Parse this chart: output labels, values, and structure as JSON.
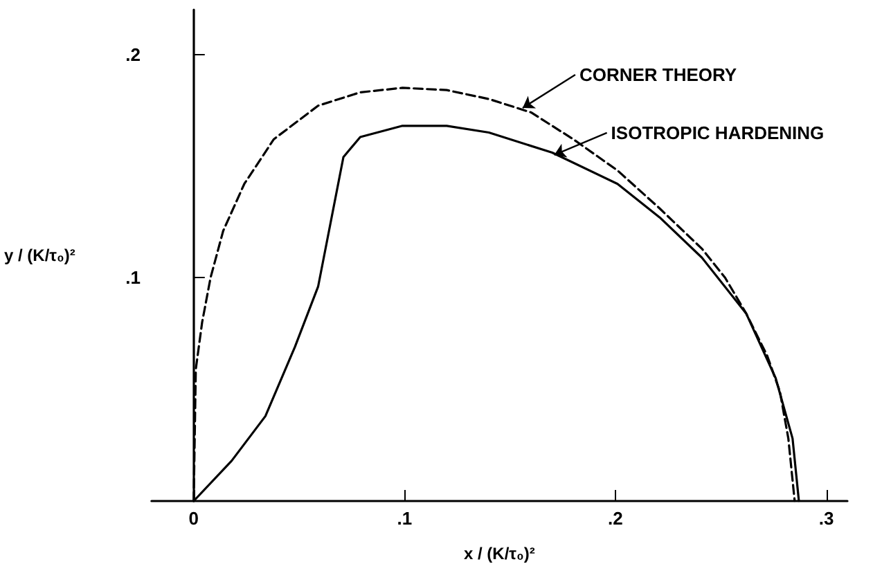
{
  "chart_data": {
    "type": "line",
    "xlabel": "x / (K/τ₀)²",
    "ylabel": "y / (K/τ₀)²",
    "xlim": [
      -0.02,
      0.31
    ],
    "ylim": [
      0,
      0.22
    ],
    "xticks": [
      0,
      {
        "value": 0.1,
        "label": ".1"
      },
      {
        "value": 0.2,
        "label": ".2"
      },
      {
        "value": 0.3,
        "label": ".3"
      }
    ],
    "yticks": [
      {
        "value": 0.1,
        "label": ".1"
      },
      {
        "value": 0.2,
        "label": ".2"
      }
    ],
    "marker": "none",
    "series": [
      {
        "color": "#000000",
        "line_style": "dashed",
        "x": [
          0,
          0.001,
          0.004,
          0.008,
          0.014,
          0.024,
          0.038,
          0.059,
          0.079,
          0.099,
          0.12,
          0.14,
          0.16,
          0.18,
          0.201,
          0.221,
          0.241,
          0.252,
          0.262,
          0.272,
          0.278,
          0.282,
          0.285
        ],
        "values": [
          0,
          0.059,
          0.08,
          0.1,
          0.121,
          0.142,
          0.162,
          0.177,
          0.183,
          0.185,
          0.184,
          0.18,
          0.174,
          0.162,
          0.148,
          0.131,
          0.113,
          0.1,
          0.084,
          0.065,
          0.049,
          0.028,
          0
        ]
      },
      {
        "color": "#000000",
        "line_style": "solid",
        "x": [
          0,
          0.018,
          0.034,
          0.048,
          0.059,
          0.071,
          0.079,
          0.099,
          0.12,
          0.14,
          0.17,
          0.201,
          0.221,
          0.241,
          0.262,
          0.276,
          0.284,
          0.287
        ],
        "values": [
          0,
          0.018,
          0.038,
          0.069,
          0.096,
          0.154,
          0.163,
          0.168,
          0.168,
          0.165,
          0.156,
          0.142,
          0.127,
          0.109,
          0.084,
          0.055,
          0.028,
          0
        ]
      }
    ],
    "annotations": [
      {
        "text": "CORNER THEORY",
        "x": 0.156,
        "y": 0.176
      },
      {
        "text": "ISOTROPIC HARDENING",
        "x": 0.171,
        "y": 0.155
      }
    ]
  }
}
